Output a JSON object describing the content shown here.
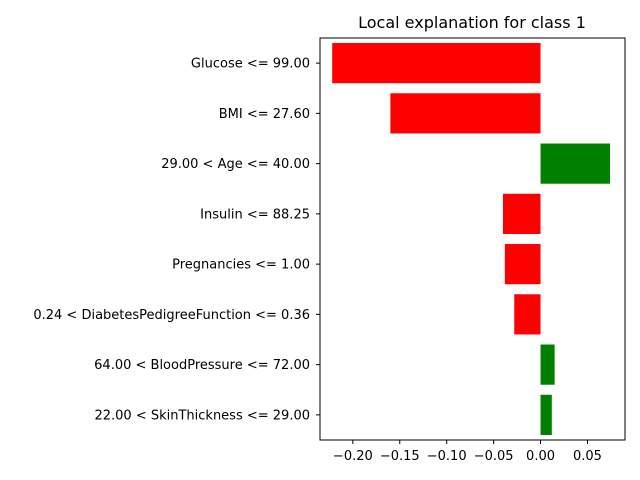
{
  "chart_data": {
    "type": "bar",
    "orientation": "horizontal",
    "title": "Local explanation for class 1",
    "xlabel": "",
    "ylabel": "",
    "xlim": [
      -0.235,
      0.09
    ],
    "xticks": [
      -0.2,
      -0.15,
      -0.1,
      -0.05,
      0.0,
      0.05
    ],
    "xtick_labels": [
      "−0.20",
      "−0.15",
      "−0.10",
      "−0.05",
      "0.00",
      "0.05"
    ],
    "grid": false,
    "legend": "none",
    "colors": {
      "positive": "#008000",
      "negative": "#ff0000"
    },
    "categories": [
      "Glucose <= 99.00",
      "BMI <= 27.60",
      "29.00 < Age <= 40.00",
      "Insulin <= 88.25",
      "Pregnancies <= 1.00",
      "0.24 < DiabetesPedigreeFunction <= 0.36",
      "64.00 < BloodPressure <= 72.00",
      "22.00 < SkinThickness <= 29.00"
    ],
    "values": [
      -0.222,
      -0.16,
      0.074,
      -0.04,
      -0.038,
      -0.028,
      0.015,
      0.012
    ]
  }
}
